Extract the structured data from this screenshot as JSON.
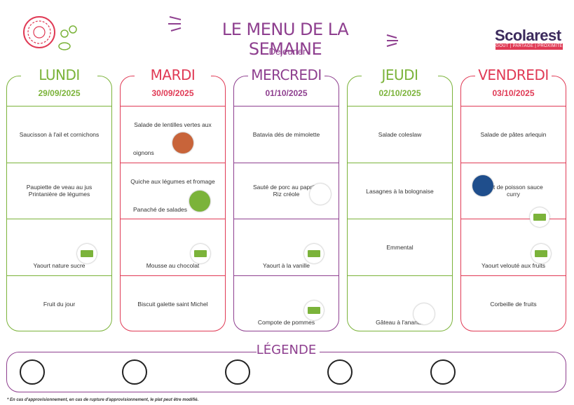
{
  "header": {
    "title": "LE MENU DE LA SEMAINE",
    "subtitle": "Déjeuner",
    "brand": "Scolarest",
    "brand_tagline": "GOÛT | PARTAGE | PROXIMITÉ"
  },
  "colors": {
    "purple": "#8e3f8f",
    "green": "#7bb33a",
    "red": "#e03a55"
  },
  "days": [
    {
      "name": "LUNDI",
      "date": "29/09/2025",
      "color": "#7bb33a",
      "rows": [
        {
          "text": "Saucisson à l'ail et cornichons"
        },
        {
          "text": "Paupiette de veau au jus\nPrintanière de légumes"
        },
        {
          "text": "Yaourt nature sucre",
          "badge": "bio-icon"
        },
        {
          "text": "Fruit du jour"
        }
      ]
    },
    {
      "name": "MARDI",
      "date": "30/09/2025",
      "color": "#e03a55",
      "rows": [
        {
          "text": "Salade de lentilles vertes aux",
          "text2": "oignons",
          "badge": "label-rouge-icon"
        },
        {
          "text": "Quiche aux légumes et fromage",
          "text2": "Panaché de salades",
          "badge": "vegetarien-icon"
        },
        {
          "text": "Mousse au chocolat",
          "badge": "bio-icon"
        },
        {
          "text": "Biscuit galette saint Michel"
        }
      ]
    },
    {
      "name": "MERCREDI",
      "date": "01/10/2025",
      "color": "#8e3f8f",
      "rows": [
        {
          "text": "Batavia dés de mimolette"
        },
        {
          "text": "Sauté de porc au paprika\nRiz créole",
          "badge": "porc-francais-icon"
        },
        {
          "text": "Yaourt à la vanille",
          "badge": "bio-icon"
        },
        {
          "text": "Compote de pommes",
          "badge": "bio-icon"
        }
      ]
    },
    {
      "name": "JEUDI",
      "date": "02/10/2025",
      "color": "#7bb33a",
      "rows": [
        {
          "text": "Salade coleslaw"
        },
        {
          "text": "Lasagnes à la bolognaise"
        },
        {
          "text": "Emmental"
        },
        {
          "text": "Gâteau à l'ananas",
          "badge": "fait-maison-icon"
        }
      ]
    },
    {
      "name": "VENDREDI",
      "date": "03/10/2025",
      "color": "#e03a55",
      "rows": [
        {
          "text": "Salade de pâtes arlequin"
        },
        {
          "text": "Filet de poisson sauce\ncurry",
          "badge": "peche-durable-icon",
          "badge2": "bio-icon"
        },
        {
          "text": "Yaourt velouté aux fruits",
          "badge": "bio-icon"
        },
        {
          "text": "Corbeille de fruits"
        }
      ]
    }
  ],
  "legend": {
    "title": "LÉGENDE"
  },
  "footnote": "* En cas d'approvisionnement, en cas de rupture d'approvisionnement, le plat peut être modifié."
}
